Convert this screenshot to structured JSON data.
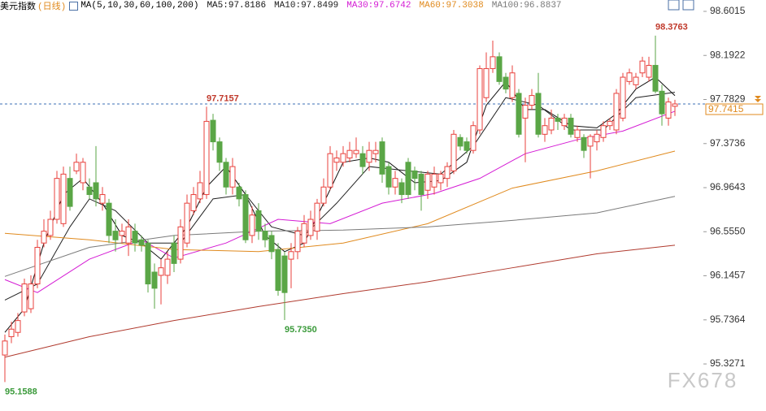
{
  "chart_data": {
    "type": "candlestick",
    "title": "美元指数",
    "period": "(日线)",
    "ma_params": "MA(5,10,30,60,100,200)",
    "watermark": "FX678",
    "up_color": "#e8413c",
    "down_color": "#5aa646",
    "ylim": [
      94.89,
      98.707
    ],
    "yticks": [
      98.6015,
      98.1922,
      97.7829,
      97.3736,
      96.9643,
      {
        "value": 96.555,
        "label": "96.5550"
      },
      96.1457,
      95.7364,
      95.3271
    ],
    "last_price": 97.7415,
    "candles": {
      "open": [
        95.41,
        95.58,
        95.62,
        95.81,
        95.84,
        96.07,
        96.45,
        96.52,
        96.67,
        96.63,
        97.05,
        97.12,
        97.01,
        96.97,
        97.01,
        96.82,
        96.82,
        96.56,
        96.52,
        96.45,
        96.56,
        96.48,
        96.45,
        96.18,
        96.15,
        96.15,
        96.45,
        96.3,
        96.45,
        96.75,
        96.86,
        96.9,
        97.59,
        97.39,
        97.2,
        96.97,
        96.97,
        96.9,
        96.52,
        96.75,
        96.56,
        96.52,
        96.39,
        96.33,
        96.3,
        96.37,
        96.45,
        96.52,
        96.56,
        96.82,
        96.97,
        97.2,
        97.2,
        97.24,
        97.28,
        97.28,
        97.2,
        97.28,
        97.39,
        97.16,
        96.97,
        97.01,
        97.2,
        97.12,
        97.09,
        96.94,
        96.97,
        97.01,
        97.05,
        97.12,
        97.43,
        97.39,
        97.31,
        97.5,
        97.8,
        98.07,
        98.18,
        97.99,
        97.8,
        97.84,
        97.61,
        97.73,
        97.84,
        97.46,
        97.5,
        97.61,
        97.54,
        97.61,
        97.43,
        97.43,
        97.35,
        97.39,
        97.43,
        97.54,
        97.5,
        97.61,
        97.95,
        97.92,
        98.03,
        97.99,
        98.1,
        97.86,
        97.61,
        97.72
      ],
      "high": [
        95.6,
        95.72,
        95.8,
        96.12,
        96.15,
        96.48,
        96.67,
        96.75,
        97.12,
        97.16,
        97.16,
        97.28,
        97.24,
        97.05,
        97.35,
        96.97,
        96.86,
        96.67,
        96.63,
        96.67,
        96.63,
        96.52,
        96.48,
        96.26,
        96.3,
        96.37,
        96.52,
        96.67,
        96.9,
        96.97,
        97.12,
        97.7157,
        97.65,
        97.43,
        97.24,
        97.24,
        97.01,
        96.94,
        96.79,
        96.82,
        96.63,
        96.56,
        96.45,
        96.37,
        96.45,
        96.6,
        96.71,
        96.75,
        96.86,
        97.05,
        97.35,
        97.31,
        97.35,
        97.39,
        97.43,
        97.35,
        97.39,
        97.39,
        97.43,
        97.2,
        97.12,
        97.05,
        97.24,
        97.16,
        97.12,
        97.12,
        97.16,
        97.12,
        97.2,
        97.5,
        97.46,
        97.43,
        97.58,
        98.1,
        98.22,
        98.33,
        98.22,
        98.03,
        98.1,
        97.88,
        97.8,
        97.88,
        98.03,
        97.61,
        97.69,
        97.65,
        97.65,
        97.65,
        97.54,
        97.46,
        97.46,
        97.5,
        97.58,
        97.61,
        97.88,
        98.03,
        98.07,
        98.03,
        98.18,
        98.18,
        98.3763,
        97.92,
        97.8,
        97.78
      ],
      "low": [
        95.1588,
        95.52,
        95.58,
        95.77,
        95.8,
        96.03,
        96.41,
        96.48,
        96.63,
        96.6,
        96.75,
        97.09,
        96.94,
        96.86,
        96.79,
        96.75,
        96.45,
        96.37,
        96.45,
        96.33,
        96.37,
        96.37,
        95.99,
        95.84,
        95.88,
        96.07,
        96.18,
        96.26,
        96.41,
        96.71,
        96.82,
        96.86,
        97.31,
        97.12,
        96.9,
        96.9,
        96.79,
        96.45,
        96.45,
        96.48,
        96.41,
        96.3,
        95.96,
        95.735,
        96.03,
        96.3,
        96.41,
        96.48,
        96.48,
        96.79,
        96.94,
        97.12,
        97.16,
        97.2,
        97.24,
        97.09,
        97.12,
        97.2,
        97.01,
        96.9,
        96.9,
        96.82,
        96.86,
        96.94,
        96.75,
        96.86,
        96.9,
        96.94,
        96.97,
        97.09,
        97.31,
        97.28,
        97.28,
        97.46,
        97.76,
        98.03,
        97.92,
        97.84,
        97.76,
        97.43,
        97.2,
        97.69,
        97.43,
        97.39,
        97.46,
        97.5,
        97.5,
        97.43,
        97.39,
        97.24,
        97.05,
        97.31,
        97.39,
        97.5,
        97.46,
        97.58,
        97.92,
        97.88,
        97.99,
        97.95,
        97.84,
        97.54,
        97.54,
        97.63
      ],
      "close": [
        95.54,
        95.65,
        95.73,
        96.07,
        96.07,
        96.41,
        96.56,
        96.67,
        97.05,
        97.09,
        96.79,
        97.2,
        97.2,
        96.9,
        96.86,
        96.9,
        96.52,
        96.48,
        96.56,
        96.6,
        96.45,
        96.43,
        96.07,
        96.03,
        96.22,
        96.3,
        96.26,
        96.6,
        96.82,
        96.9,
        97.01,
        97.58,
        97.39,
        97.2,
        96.97,
        97.16,
        96.86,
        96.48,
        96.71,
        96.56,
        96.48,
        96.37,
        96.01,
        95.99,
        96.37,
        96.56,
        96.63,
        96.67,
        96.82,
        96.97,
        97.28,
        97.24,
        97.28,
        97.31,
        97.31,
        97.16,
        97.31,
        97.31,
        97.09,
        96.97,
        97.05,
        96.9,
        96.9,
        97.05,
        96.9,
        97.09,
        97.09,
        97.09,
        97.16,
        97.46,
        97.35,
        97.31,
        97.54,
        98.07,
        98.07,
        98.18,
        97.95,
        97.88,
        98.03,
        97.46,
        97.73,
        97.82,
        97.46,
        97.54,
        97.61,
        97.58,
        97.61,
        97.46,
        97.5,
        97.31,
        97.44,
        97.46,
        97.54,
        97.58,
        97.84,
        97.99,
        98.03,
        97.99,
        98.14,
        98.1,
        97.86,
        97.65,
        97.76,
        97.7415
      ]
    },
    "series": [
      {
        "name": "MA5",
        "label": "MA5:97.8186",
        "color": "#111111",
        "x": [
          0,
          3,
          6,
          9,
          12,
          15,
          18,
          21,
          24,
          28,
          31,
          34,
          37,
          40,
          43,
          46,
          49,
          52,
          56,
          59,
          63,
          67,
          71,
          74,
          77,
          80,
          83,
          87,
          91,
          94,
          97,
          100,
          103
        ],
        "values": [
          95.62,
          95.84,
          96.45,
          96.9,
          97.05,
          96.82,
          96.52,
          96.45,
          96.3,
          96.6,
          96.97,
          97.16,
          96.9,
          96.52,
          96.37,
          96.45,
          96.82,
          97.2,
          97.24,
          97.2,
          97.01,
          97.03,
          97.2,
          97.73,
          97.95,
          97.69,
          97.69,
          97.54,
          97.52,
          97.65,
          97.88,
          97.99,
          97.8186
        ]
      },
      {
        "name": "MA10",
        "label": "MA10:97.8499",
        "color": "#222222",
        "x": [
          0,
          5,
          10,
          13,
          17,
          22,
          27,
          32,
          37,
          41,
          46,
          51,
          56,
          62,
          67,
          72,
          77,
          82,
          87,
          92,
          97,
          103
        ],
        "values": [
          95.92,
          96.07,
          96.6,
          96.86,
          96.75,
          96.45,
          96.45,
          96.86,
          96.9,
          96.6,
          96.52,
          96.82,
          97.16,
          97.12,
          97.09,
          97.35,
          97.8,
          97.73,
          97.5,
          97.5,
          97.8,
          97.8499
        ]
      },
      {
        "name": "MA30",
        "label": "MA30:97.6742",
        "color": "#d41ad4",
        "x": [
          0,
          5,
          13,
          21,
          26,
          34,
          42,
          50,
          58,
          66,
          73,
          80,
          88,
          95,
          103
        ],
        "values": [
          96.11,
          95.99,
          96.3,
          96.48,
          96.31,
          96.45,
          96.67,
          96.63,
          96.82,
          96.91,
          97.05,
          97.28,
          97.41,
          97.49,
          97.6742
        ]
      },
      {
        "name": "MA60",
        "label": "MA60:97.3038",
        "color": "#e08a1e",
        "x": [
          0,
          13,
          26,
          39,
          52,
          65,
          78,
          91,
          103
        ],
        "values": [
          96.54,
          96.48,
          96.39,
          96.37,
          96.45,
          96.63,
          96.96,
          97.12,
          97.3038
        ]
      },
      {
        "name": "MA100",
        "label": "MA100:96.8837",
        "color": "#7a7a7a",
        "x": [
          0,
          13,
          26,
          39,
          52,
          65,
          78,
          91,
          103
        ],
        "values": [
          96.14,
          96.41,
          96.52,
          96.56,
          96.57,
          96.6,
          96.66,
          96.73,
          96.8837
        ]
      },
      {
        "name": "MA200",
        "color": "#b03a2e",
        "x": [
          0,
          13,
          26,
          39,
          52,
          65,
          78,
          91,
          103
        ],
        "values": [
          95.39,
          95.58,
          95.73,
          95.86,
          95.98,
          96.09,
          96.22,
          96.35,
          96.43
        ]
      }
    ],
    "annotations": [
      {
        "text": "98.3763",
        "value": 98.3763,
        "color": "#c0392b"
      },
      {
        "text": "97.7157",
        "value": 97.7157,
        "color": "#c0392b"
      },
      {
        "text": "95.7350",
        "value": 95.735,
        "color": "#3a9a3a"
      },
      {
        "text": "95.1588",
        "value": 95.1588,
        "color": "#3a9a3a"
      }
    ]
  }
}
